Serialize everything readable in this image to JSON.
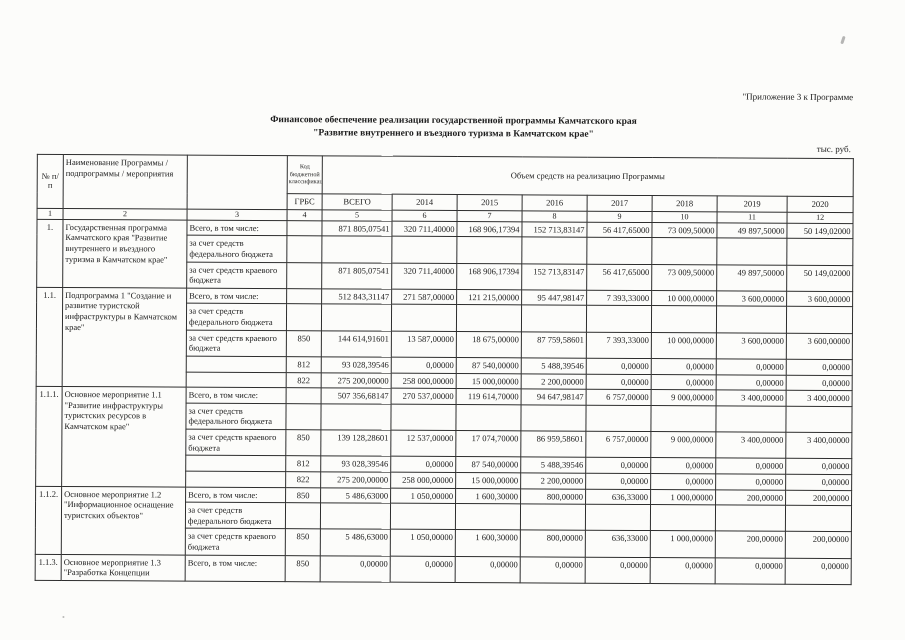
{
  "page": {
    "corner_note": "\"Приложение 3 к Программе",
    "title_line1": "Финансовое обеспечение реализации государственной программы Камчатского края",
    "title_line2": "\"Развитие внутреннего и въездного туризма в Камчатском крае\"",
    "units": "тыс. руб."
  },
  "table": {
    "header": {
      "num": "№ п/п",
      "name": "Наименование Программы / подпрограммы / мероприятия",
      "code": "Код бюджетной классификации",
      "grbs": "ГРБС",
      "volume": "Объем средств на реализацию Программы",
      "value_cols": [
        "ВСЕГО",
        "2014",
        "2015",
        "2016",
        "2017",
        "2018",
        "2019",
        "2020"
      ],
      "index_row": [
        "1",
        "2",
        "3",
        "4",
        "5",
        "6",
        "7",
        "8",
        "9",
        "10",
        "11",
        "12"
      ]
    },
    "groups": [
      {
        "num": "1.",
        "name": "Государственная программа Камчатского края \"Развитие внутреннего и въездного туризма в Камчатском крае\"",
        "rows": [
          {
            "label": "Всего, в том числе:",
            "grbs": "",
            "values": [
              "871 805,07541",
              "320 711,40000",
              "168 906,17394",
              "152 713,83147",
              "56 417,65000",
              "73 009,50000",
              "49 897,50000",
              "50 149,02000"
            ]
          },
          {
            "label": "за счет средств федерального бюджета",
            "grbs": "",
            "values": [
              "",
              "",
              "",
              "",
              "",
              "",
              "",
              ""
            ]
          },
          {
            "label": "за счет средств краевого бюджета",
            "grbs": "",
            "values": [
              "871 805,07541",
              "320 711,40000",
              "168 906,17394",
              "152 713,83147",
              "56 417,65000",
              "73 009,50000",
              "49 897,50000",
              "50 149,02000"
            ]
          }
        ]
      },
      {
        "num": "1.1.",
        "name": "Подпрограмма 1 \"Создание и развитие туристской инфраструктуры в Камчатском крае\"",
        "rows": [
          {
            "label": "Всего, в том числе:",
            "grbs": "",
            "values": [
              "512 843,31147",
              "271 587,00000",
              "121 215,00000",
              "95 447,98147",
              "7 393,33000",
              "10 000,00000",
              "3 600,00000",
              "3 600,00000"
            ]
          },
          {
            "label": "за счет средств федерального бюджета",
            "grbs": "",
            "values": [
              "",
              "",
              "",
              "",
              "",
              "",
              "",
              ""
            ]
          },
          {
            "label": "за счет средств краевого бюджета",
            "grbs": "850",
            "values": [
              "144 614,91601",
              "13 587,00000",
              "18 675,00000",
              "87 759,58601",
              "7 393,33000",
              "10 000,00000",
              "3 600,00000",
              "3 600,00000"
            ]
          },
          {
            "label": "",
            "grbs": "812",
            "values": [
              "93 028,39546",
              "0,00000",
              "87 540,00000",
              "5 488,39546",
              "0,00000",
              "0,00000",
              "0,00000",
              "0,00000"
            ]
          },
          {
            "label": "",
            "grbs": "822",
            "values": [
              "275 200,00000",
              "258 000,00000",
              "15 000,00000",
              "2 200,00000",
              "0,00000",
              "0,00000",
              "0,00000",
              "0,00000"
            ]
          }
        ]
      },
      {
        "num": "1.1.1.",
        "name": "Основное мероприятие 1.1 \"Развитие инфраструктуры туристских ресурсов в Камчатском крае\"",
        "rows": [
          {
            "label": "Всего, в том числе:",
            "grbs": "",
            "values": [
              "507 356,68147",
              "270 537,00000",
              "119 614,70000",
              "94 647,98147",
              "6 757,00000",
              "9 000,00000",
              "3 400,00000",
              "3 400,00000"
            ]
          },
          {
            "label": "за счет средств федерального бюджета",
            "grbs": "",
            "values": [
              "",
              "",
              "",
              "",
              "",
              "",
              "",
              ""
            ]
          },
          {
            "label": "за счет средств краевого бюджета",
            "grbs": "850",
            "values": [
              "139 128,28601",
              "12 537,00000",
              "17 074,70000",
              "86 959,58601",
              "6 757,00000",
              "9 000,00000",
              "3 400,00000",
              "3 400,00000"
            ]
          },
          {
            "label": "",
            "grbs": "812",
            "values": [
              "93 028,39546",
              "0,00000",
              "87 540,00000",
              "5 488,39546",
              "0,00000",
              "0,00000",
              "0,00000",
              "0,00000"
            ]
          },
          {
            "label": "",
            "grbs": "822",
            "values": [
              "275 200,00000",
              "258 000,00000",
              "15 000,00000",
              "2 200,00000",
              "0,00000",
              "0,00000",
              "0,00000",
              "0,00000"
            ]
          }
        ]
      },
      {
        "num": "1.1.2.",
        "name": "Основное мероприятие 1.2 \"Информационное оснащение туристских объектов\"",
        "rows": [
          {
            "label": "Всего, в том числе:",
            "grbs": "850",
            "values": [
              "5 486,63000",
              "1 050,00000",
              "1 600,30000",
              "800,00000",
              "636,33000",
              "1 000,00000",
              "200,00000",
              "200,00000"
            ]
          },
          {
            "label": "за счет средств федерального бюджета",
            "grbs": "",
            "values": [
              "",
              "",
              "",
              "",
              "",
              "",
              "",
              ""
            ]
          },
          {
            "label": "за счет средств краевого бюджета",
            "grbs": "850",
            "values": [
              "5 486,63000",
              "1 050,00000",
              "1 600,30000",
              "800,00000",
              "636,33000",
              "1 000,00000",
              "200,00000",
              "200,00000"
            ]
          }
        ]
      },
      {
        "num": "1.1.3.",
        "name": "Основное мероприятие 1.3 \"Разработка Концепции",
        "rows": [
          {
            "label": "Всего, в том числе:",
            "grbs": "850",
            "values": [
              "0,00000",
              "0,00000",
              "0,00000",
              "0,00000",
              "0,00000",
              "0,00000",
              "0,00000",
              "0,00000"
            ]
          }
        ]
      }
    ]
  }
}
